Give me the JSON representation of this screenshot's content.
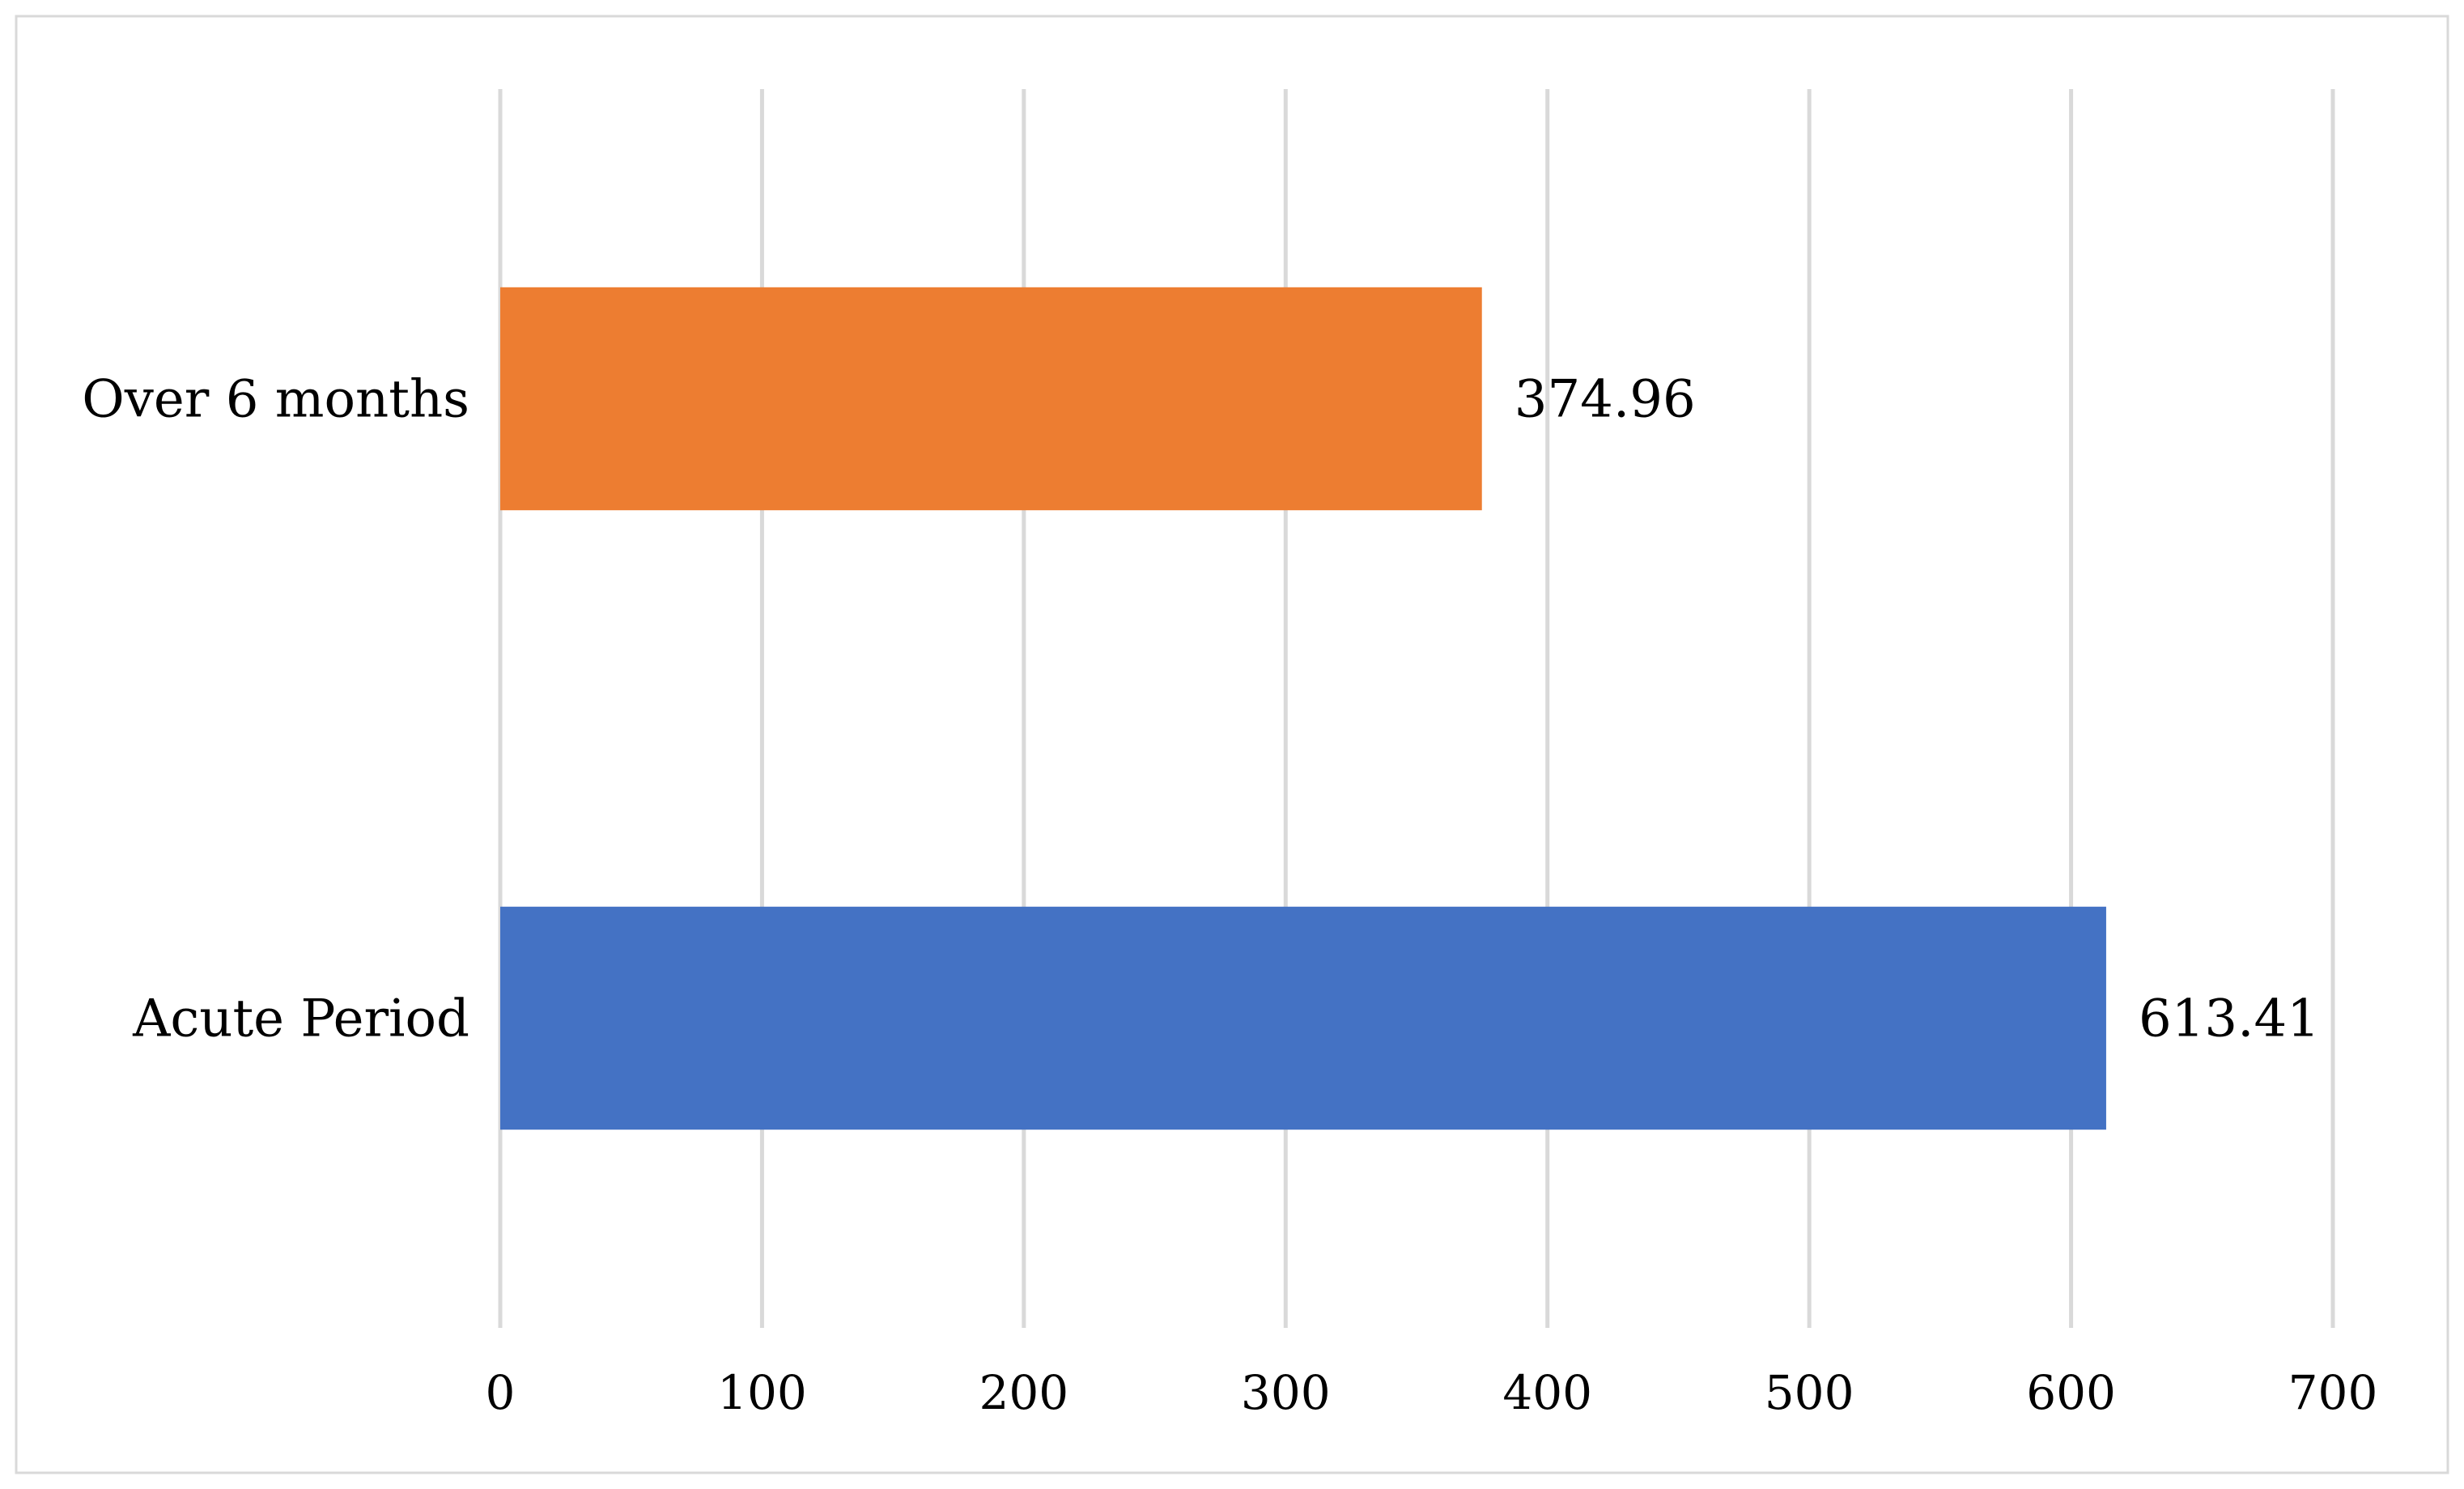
{
  "chart_data": {
    "type": "bar",
    "orientation": "horizontal",
    "categories": [
      "Over 6 months",
      "Acute Period"
    ],
    "values": [
      374.96,
      613.41
    ],
    "value_labels": [
      "374.96",
      "613.41"
    ],
    "colors": [
      "#ED7D31",
      "#4472C4"
    ],
    "x_ticks": [
      "0",
      "100",
      "200",
      "300",
      "400",
      "500",
      "600",
      "700"
    ],
    "xlim": [
      0,
      700
    ],
    "grid": true,
    "legend": "none",
    "title": "",
    "xlabel": "",
    "ylabel": ""
  }
}
